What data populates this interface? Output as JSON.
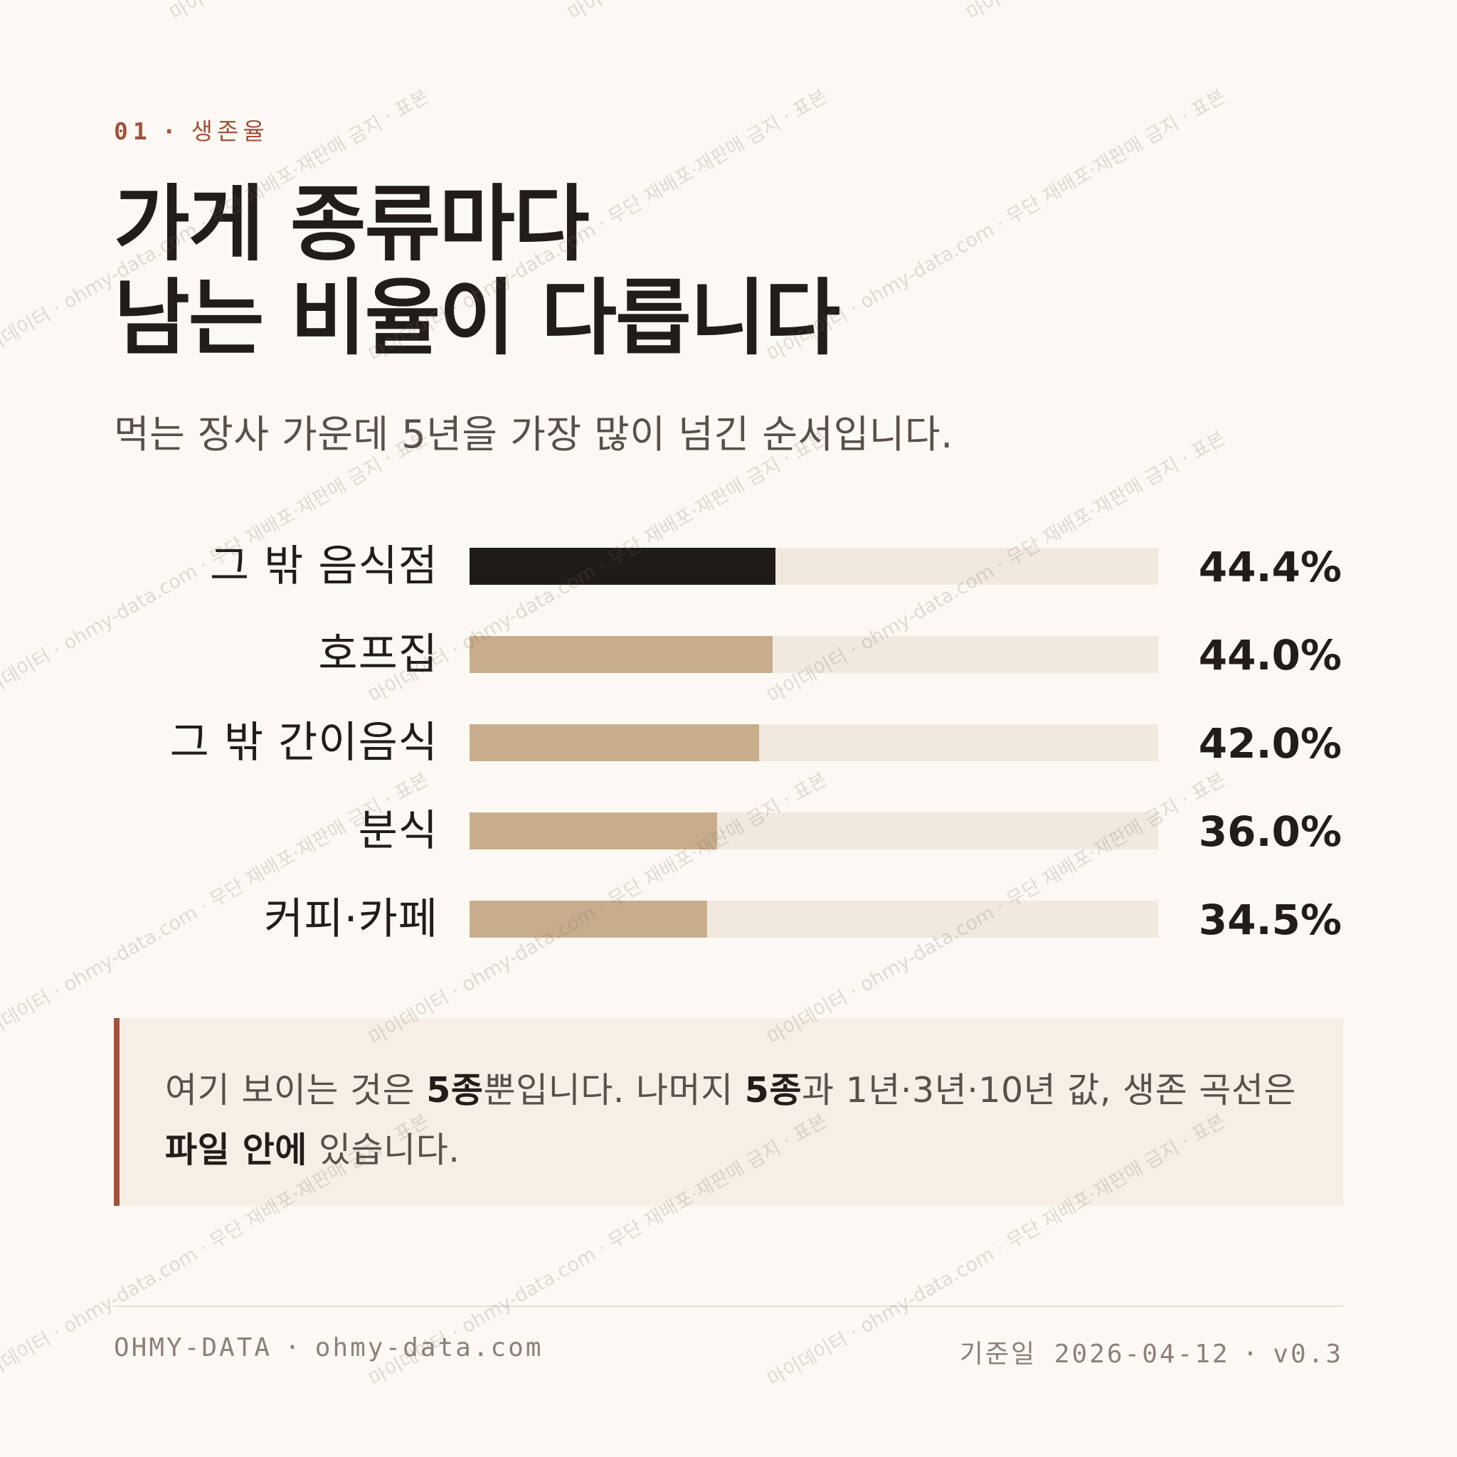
{
  "header": {
    "eyebrow_num": "01",
    "eyebrow_sep": "·",
    "eyebrow_label": "생존율",
    "title_line1": "가게 종류마다",
    "title_line2": "남는 비율이 다릅니다",
    "subtitle": "먹는 장사 가운데 5년을 가장 많이 넘긴 순서입니다."
  },
  "chart_data": {
    "type": "bar",
    "orientation": "horizontal",
    "categories": [
      "그 밖 음식점",
      "호프집",
      "그 밖 간이음식",
      "분식",
      "커피·카페"
    ],
    "values": [
      44.4,
      44.0,
      42.0,
      36.0,
      34.5
    ],
    "value_labels": [
      "44.4%",
      "44.0%",
      "42.0%",
      "36.0%",
      "34.5%"
    ],
    "xlim": [
      0,
      100
    ],
    "unit": "%",
    "highlight_index": 0,
    "colors": {
      "highlight": "#1f1b18",
      "bar": "#c8ad8d",
      "track": "#f1e9de"
    },
    "grid": false,
    "legend": "none"
  },
  "note": {
    "part1": "여기 보이는 것은 ",
    "bold1": "5종",
    "part2": "뿐입니다. 나머지 ",
    "bold2": "5종",
    "part3": "과 1년·3년·10년 값, 생존 곡선은 ",
    "bold3": "파일 안에",
    "part4": " 있습니다."
  },
  "footer": {
    "brand": "OHMY-DATA",
    "sep": "·",
    "site": "ohmy-data.com",
    "date_label": "기준일",
    "date": "2026-04-12",
    "version": "v0.3"
  },
  "watermark": {
    "text": "마이데이터 · ohmy-data.com · 무단 재배포·재판매 금지 · 표본"
  },
  "colors": {
    "background": "#fcf9f4",
    "accent": "#a0523d",
    "text": "#221d1a",
    "muted": "#595049",
    "note_bg": "#f6efe6"
  }
}
